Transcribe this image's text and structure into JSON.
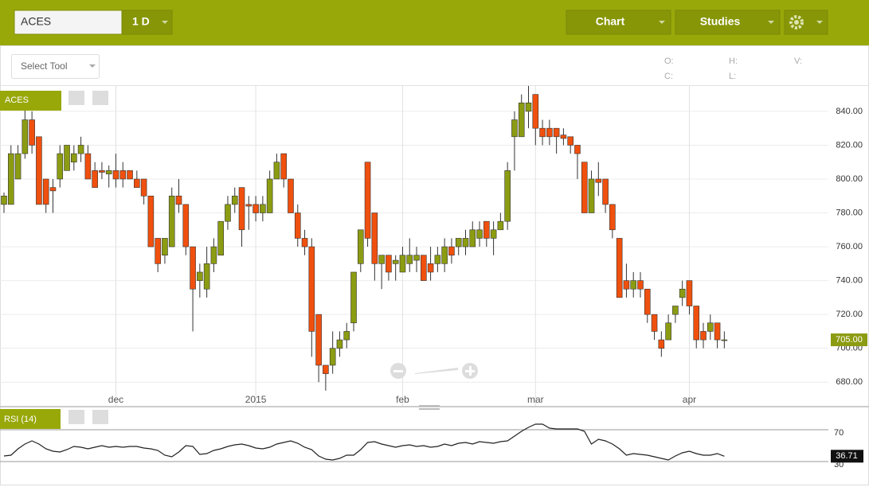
{
  "toolbar": {
    "symbol": "ACES",
    "interval": "1 D",
    "chart_button": "Chart",
    "studies_button": "Studies"
  },
  "info_bar": {
    "select_tool": "Select Tool",
    "ohlc_labels": [
      "O:",
      "H:",
      "V:",
      "C:",
      "L:"
    ]
  },
  "chart_data": [
    {
      "type": "candlestick",
      "label": "ACES",
      "up_color": "#8c9c12",
      "down_color": "#f0500e",
      "grid": true,
      "open": [
        785,
        785,
        800,
        815,
        835,
        825,
        800,
        795,
        800,
        805,
        810,
        815,
        815,
        805,
        805,
        803,
        805,
        805,
        805,
        800,
        800,
        790,
        765,
        755,
        760,
        790,
        785,
        760,
        740,
        735,
        750,
        755,
        775,
        785,
        795,
        785,
        785,
        780,
        780,
        800,
        815,
        800,
        780,
        765,
        760,
        720,
        690,
        690,
        700,
        705,
        715,
        750,
        810,
        780,
        750,
        755,
        750,
        745,
        750,
        752,
        755,
        750,
        750,
        750,
        760,
        760,
        760,
        760,
        765,
        775,
        765,
        770,
        775,
        825,
        825,
        840,
        850,
        830,
        830,
        830,
        826,
        825,
        820,
        810,
        780,
        800,
        800,
        785,
        765,
        740,
        735,
        740,
        735,
        720,
        705,
        705,
        720,
        730,
        740,
        725,
        710,
        710,
        715,
        705
      ],
      "high": [
        792,
        820,
        820,
        842,
        840,
        825,
        800,
        800,
        820,
        820,
        820,
        825,
        820,
        810,
        810,
        808,
        815,
        810,
        805,
        805,
        800,
        790,
        765,
        765,
        795,
        800,
        785,
        760,
        750,
        760,
        765,
        775,
        790,
        795,
        795,
        790,
        790,
        790,
        805,
        815,
        815,
        800,
        785,
        770,
        765,
        720,
        690,
        710,
        710,
        715,
        745,
        770,
        810,
        780,
        755,
        755,
        755,
        760,
        765,
        760,
        755,
        760,
        760,
        765,
        765,
        765,
        770,
        775,
        775,
        775,
        775,
        780,
        810,
        840,
        850,
        855,
        850,
        835,
        835,
        830,
        830,
        825,
        820,
        810,
        805,
        810,
        800,
        785,
        765,
        750,
        745,
        745,
        735,
        720,
        710,
        720,
        725,
        740,
        740,
        725,
        715,
        720,
        715,
        710
      ],
      "low": [
        780,
        785,
        800,
        812,
        815,
        785,
        780,
        780,
        795,
        805,
        805,
        810,
        800,
        795,
        800,
        795,
        795,
        795,
        800,
        795,
        785,
        760,
        745,
        750,
        760,
        780,
        755,
        710,
        730,
        730,
        745,
        755,
        770,
        780,
        760,
        770,
        775,
        775,
        780,
        800,
        795,
        780,
        760,
        755,
        695,
        680,
        675,
        685,
        695,
        700,
        710,
        745,
        760,
        740,
        735,
        740,
        740,
        745,
        745,
        745,
        740,
        740,
        745,
        745,
        750,
        755,
        755,
        760,
        760,
        760,
        755,
        770,
        770,
        805,
        825,
        830,
        820,
        820,
        820,
        815,
        820,
        815,
        800,
        780,
        780,
        790,
        780,
        765,
        730,
        730,
        730,
        730,
        715,
        705,
        695,
        705,
        715,
        725,
        720,
        700,
        700,
        705,
        700,
        700
      ],
      "close": [
        790,
        815,
        815,
        835,
        820,
        785,
        785,
        793,
        815,
        820,
        815,
        820,
        800,
        795,
        804,
        805,
        800,
        800,
        800,
        795,
        790,
        760,
        750,
        765,
        790,
        785,
        760,
        735,
        745,
        750,
        760,
        775,
        785,
        790,
        770,
        784,
        780,
        785,
        800,
        810,
        800,
        780,
        765,
        760,
        710,
        690,
        685,
        700,
        705,
        710,
        745,
        770,
        765,
        750,
        755,
        745,
        752,
        755,
        755,
        755,
        740,
        745,
        755,
        760,
        755,
        765,
        765,
        770,
        770,
        765,
        770,
        775,
        805,
        835,
        845,
        845,
        830,
        825,
        825,
        825,
        824,
        820,
        815,
        780,
        800,
        798,
        785,
        770,
        730,
        735,
        740,
        735,
        720,
        710,
        700,
        715,
        725,
        735,
        725,
        705,
        705,
        715,
        705,
        705
      ],
      "xlim": [
        -0.57,
        117.88
      ],
      "xticks": [
        {
          "value": 16,
          "label": "dec"
        },
        {
          "value": 36,
          "label": "2015"
        },
        {
          "value": 57,
          "label": "feb"
        },
        {
          "value": 76,
          "label": "mar"
        },
        {
          "value": 98,
          "label": "apr"
        }
      ],
      "ylim": [
        666,
        855
      ],
      "yticks": [
        {
          "value": 680,
          "label": "680.00"
        },
        {
          "value": 700,
          "label": "700.00"
        },
        {
          "value": 720,
          "label": "720.00"
        },
        {
          "value": 740,
          "label": "740.00"
        },
        {
          "value": 760,
          "label": "760.00"
        },
        {
          "value": 780,
          "label": "780.00"
        },
        {
          "value": 800,
          "label": "800.00"
        },
        {
          "value": 820,
          "label": "820.00"
        },
        {
          "value": 840,
          "label": "840.00"
        }
      ],
      "last_value": {
        "value": 705,
        "label": "705.00"
      }
    },
    {
      "type": "line",
      "label": "RSI (14)",
      "color": "#222222",
      "values": [
        37,
        38,
        46,
        52,
        56,
        52,
        46,
        43,
        42,
        45,
        49,
        48,
        46,
        48,
        50,
        48,
        49,
        48,
        49,
        49,
        47,
        46,
        44,
        38,
        36,
        42,
        50,
        49,
        39,
        40,
        44,
        46,
        49,
        51,
        52,
        50,
        47,
        46,
        48,
        52,
        54,
        56,
        53,
        48,
        45,
        37,
        33,
        32,
        34,
        38,
        38,
        45,
        54,
        55,
        52,
        50,
        48,
        50,
        51,
        49,
        50,
        48,
        49,
        52,
        50,
        53,
        54,
        52,
        55,
        54,
        53,
        55,
        56,
        62,
        68,
        73,
        77,
        77,
        72,
        71,
        71,
        71,
        71,
        68,
        52,
        58,
        56,
        52,
        46,
        38,
        40,
        39,
        38,
        36,
        34,
        32,
        37,
        41,
        43,
        40,
        38,
        38,
        40,
        36.71
      ],
      "xlim": [
        -0.57,
        117.88
      ],
      "ylim": [
        2,
        98
      ],
      "yticks": [
        30,
        70
      ],
      "last_value": {
        "value": 36.71,
        "label": "36.71"
      }
    }
  ]
}
